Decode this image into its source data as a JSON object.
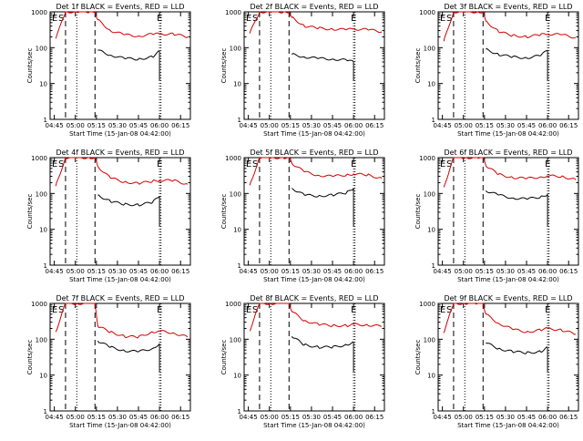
{
  "figure": {
    "x_label": "Start Time (15-Jan-08 04:42:00)",
    "y_label": "Counts/sec",
    "x_ticks": [
      "04:45",
      "05:00",
      "05:15",
      "05:30",
      "05:45",
      "06:00",
      "06:15"
    ],
    "y_ticks": [
      "1",
      "10",
      "100",
      "1000"
    ],
    "markers": {
      "E": "E",
      "S": "S"
    }
  },
  "colors": {
    "events": "#000000",
    "lld": "#d40000",
    "axes": "#000000"
  },
  "chart_data": [
    {
      "type": "line",
      "title": "Det 1f BLACK = Events, RED = LLD",
      "xlim": [
        "04:42",
        "06:22"
      ],
      "ylim": [
        1,
        1000
      ],
      "y_scale": "log",
      "x": [
        "04:46",
        "04:53",
        "05:01",
        "05:10",
        "05:14",
        "05:16",
        "05:25",
        "05:35",
        "05:45",
        "05:55",
        "06:00",
        "06:10",
        "06:20"
      ],
      "series": [
        {
          "name": "Events",
          "values": [
            null,
            null,
            null,
            null,
            null,
            85,
            62,
            50,
            48,
            55,
            80,
            null,
            null
          ]
        },
        {
          "name": "LLD",
          "values": [
            180,
            1000,
            1000,
            1000,
            1000,
            600,
            300,
            230,
            210,
            240,
            240,
            240,
            200
          ]
        }
      ]
    },
    {
      "type": "line",
      "title": "Det 2f BLACK = Events, RED = LLD",
      "xlim": [
        "04:42",
        "06:22"
      ],
      "ylim": [
        1,
        1000
      ],
      "y_scale": "log",
      "x": [
        "04:46",
        "04:53",
        "05:01",
        "05:10",
        "05:14",
        "05:16",
        "05:25",
        "05:35",
        "05:45",
        "05:55",
        "06:00",
        "06:10",
        "06:20"
      ],
      "series": [
        {
          "name": "Events",
          "values": [
            null,
            null,
            null,
            null,
            null,
            65,
            55,
            50,
            48,
            45,
            40,
            null,
            null
          ]
        },
        {
          "name": "LLD",
          "values": [
            250,
            1000,
            1000,
            1000,
            1000,
            700,
            400,
            350,
            330,
            320,
            330,
            320,
            280
          ]
        }
      ]
    },
    {
      "type": "line",
      "title": "Det 3f BLACK = Events, RED = LLD",
      "xlim": [
        "04:42",
        "06:22"
      ],
      "ylim": [
        1,
        1000
      ],
      "y_scale": "log",
      "x": [
        "04:46",
        "04:53",
        "05:01",
        "05:10",
        "05:14",
        "05:16",
        "05:25",
        "05:35",
        "05:45",
        "05:55",
        "06:00",
        "06:10",
        "06:20"
      ],
      "series": [
        {
          "name": "Events",
          "values": [
            null,
            null,
            null,
            null,
            null,
            90,
            65,
            55,
            52,
            60,
            85,
            null,
            null
          ]
        },
        {
          "name": "LLD",
          "values": [
            150,
            1000,
            1000,
            1000,
            1000,
            550,
            280,
            220,
            200,
            230,
            240,
            230,
            190
          ]
        }
      ]
    },
    {
      "type": "line",
      "title": "Det 4f BLACK = Events, RED = LLD",
      "xlim": [
        "04:42",
        "06:22"
      ],
      "ylim": [
        1,
        1000
      ],
      "y_scale": "log",
      "x": [
        "04:46",
        "04:53",
        "05:01",
        "05:10",
        "05:14",
        "05:16",
        "05:25",
        "05:35",
        "05:45",
        "05:55",
        "06:00",
        "06:10",
        "06:20"
      ],
      "series": [
        {
          "name": "Events",
          "values": [
            null,
            null,
            null,
            null,
            null,
            90,
            60,
            50,
            48,
            56,
            85,
            null,
            null
          ]
        },
        {
          "name": "LLD",
          "values": [
            160,
            1000,
            1000,
            1000,
            1000,
            560,
            270,
            210,
            190,
            220,
            230,
            230,
            180
          ]
        }
      ]
    },
    {
      "type": "line",
      "title": "Det 5f BLACK = Events, RED = LLD",
      "xlim": [
        "04:42",
        "06:22"
      ],
      "ylim": [
        1,
        1000
      ],
      "y_scale": "log",
      "x": [
        "04:46",
        "04:53",
        "05:01",
        "05:10",
        "05:14",
        "05:16",
        "05:25",
        "05:35",
        "05:45",
        "05:55",
        "06:00",
        "06:10",
        "06:20"
      ],
      "series": [
        {
          "name": "Events",
          "values": [
            null,
            null,
            null,
            null,
            null,
            140,
            90,
            85,
            90,
            105,
            140,
            null,
            null
          ]
        },
        {
          "name": "LLD",
          "values": [
            170,
            1000,
            1000,
            1000,
            1000,
            700,
            400,
            320,
            300,
            330,
            350,
            330,
            260
          ]
        }
      ]
    },
    {
      "type": "line",
      "title": "Det 6f BLACK = Events, RED = LLD",
      "xlim": [
        "04:42",
        "06:22"
      ],
      "ylim": [
        1,
        1000
      ],
      "y_scale": "log",
      "x": [
        "04:46",
        "04:53",
        "05:01",
        "05:10",
        "05:14",
        "05:16",
        "05:25",
        "05:35",
        "05:45",
        "05:55",
        "06:00",
        "06:10",
        "06:20"
      ],
      "series": [
        {
          "name": "Events",
          "values": [
            null,
            null,
            null,
            null,
            null,
            120,
            90,
            75,
            70,
            80,
            95,
            null,
            null
          ]
        },
        {
          "name": "LLD",
          "values": [
            150,
            1000,
            1000,
            1000,
            1000,
            600,
            340,
            280,
            260,
            290,
            310,
            300,
            240
          ]
        }
      ]
    },
    {
      "type": "line",
      "title": "Det 7f BLACK = Events, RED = LLD",
      "xlim": [
        "04:42",
        "06:22"
      ],
      "ylim": [
        1,
        1000
      ],
      "y_scale": "log",
      "x": [
        "04:46",
        "04:53",
        "05:01",
        "05:10",
        "05:14",
        "05:16",
        "05:25",
        "05:35",
        "05:45",
        "05:55",
        "06:00",
        "06:10",
        "06:20"
      ],
      "series": [
        {
          "name": "Events",
          "values": [
            null,
            null,
            null,
            null,
            null,
            90,
            60,
            48,
            45,
            55,
            75,
            null,
            null
          ]
        },
        {
          "name": "LLD",
          "values": [
            160,
            1000,
            1000,
            1000,
            1000,
            230,
            160,
            120,
            115,
            160,
            170,
            150,
            115
          ]
        }
      ]
    },
    {
      "type": "line",
      "title": "Det 8f BLACK = Events, RED = LLD",
      "xlim": [
        "04:42",
        "06:22"
      ],
      "ylim": [
        1,
        1000
      ],
      "y_scale": "log",
      "x": [
        "04:46",
        "04:53",
        "05:01",
        "05:10",
        "05:14",
        "05:16",
        "05:25",
        "05:35",
        "05:45",
        "05:55",
        "06:00",
        "06:10",
        "06:20"
      ],
      "series": [
        {
          "name": "Events",
          "values": [
            null,
            null,
            null,
            null,
            null,
            120,
            70,
            60,
            60,
            70,
            85,
            null,
            null
          ]
        },
        {
          "name": "LLD",
          "values": [
            170,
            1000,
            1000,
            1000,
            1000,
            600,
            330,
            260,
            240,
            240,
            260,
            250,
            230
          ]
        }
      ]
    },
    {
      "type": "line",
      "title": "Det 9f BLACK = Events, RED = LLD",
      "xlim": [
        "04:42",
        "06:22"
      ],
      "ylim": [
        1,
        1000
      ],
      "y_scale": "log",
      "x": [
        "04:46",
        "04:53",
        "05:01",
        "05:10",
        "05:14",
        "05:16",
        "05:25",
        "05:35",
        "05:45",
        "05:55",
        "06:00",
        "06:10",
        "06:20"
      ],
      "series": [
        {
          "name": "Events",
          "values": [
            null,
            null,
            null,
            null,
            null,
            80,
            55,
            45,
            42,
            45,
            60,
            null,
            null
          ]
        },
        {
          "name": "LLD",
          "values": [
            150,
            1000,
            1000,
            1000,
            1000,
            500,
            280,
            190,
            160,
            180,
            200,
            180,
            140
          ]
        }
      ]
    }
  ]
}
